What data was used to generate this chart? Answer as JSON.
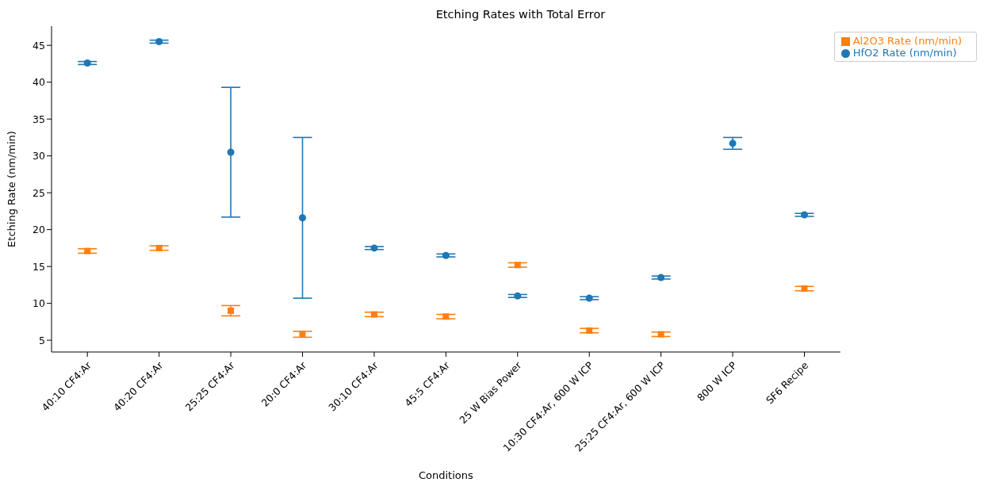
{
  "chart_data": {
    "type": "scatter",
    "title": "Etching Rates with Total Error",
    "xlabel": "Conditions",
    "ylabel": "Etching Rate (nm/min)",
    "categories": [
      "40:10 CF4:Ar",
      "40:20 CF4:Ar",
      "25:25 CF4:Ar",
      "20:0 CF4:Ar",
      "30:10 CF4:Ar",
      "45:5 CF4:Ar",
      "25 W Bias Power",
      "10:30 CF4:Ar, 600 W ICP",
      "25:25 CF4:Ar, 600 W ICP",
      "800 W ICP",
      "SF6 Recipe"
    ],
    "series": [
      {
        "name": "HfO2 Rate (nm/min)",
        "color": "#1f77b4",
        "marker": "circle",
        "values": [
          42.6,
          45.5,
          30.5,
          21.6,
          17.5,
          16.5,
          11.0,
          10.7,
          13.5,
          31.7,
          22.0
        ],
        "errors": [
          0.2,
          0.2,
          8.8,
          10.9,
          0.2,
          0.2,
          0.2,
          0.2,
          0.2,
          0.8,
          0.2
        ]
      },
      {
        "name": "Al2O3 Rate (nm/min)",
        "color": "#ff7f0e",
        "marker": "square",
        "values": [
          17.1,
          17.5,
          9.0,
          5.8,
          8.5,
          8.2,
          15.2,
          6.3,
          5.8,
          null,
          12.0
        ],
        "errors": [
          0.3,
          0.3,
          0.7,
          0.4,
          0.3,
          0.3,
          0.3,
          0.3,
          0.3,
          null,
          0.3
        ]
      }
    ],
    "ylim": [
      3.4,
      47.6
    ],
    "yticks": [
      5,
      10,
      15,
      20,
      25,
      30,
      35,
      40,
      45
    ],
    "grid": false,
    "legend": "top right"
  }
}
